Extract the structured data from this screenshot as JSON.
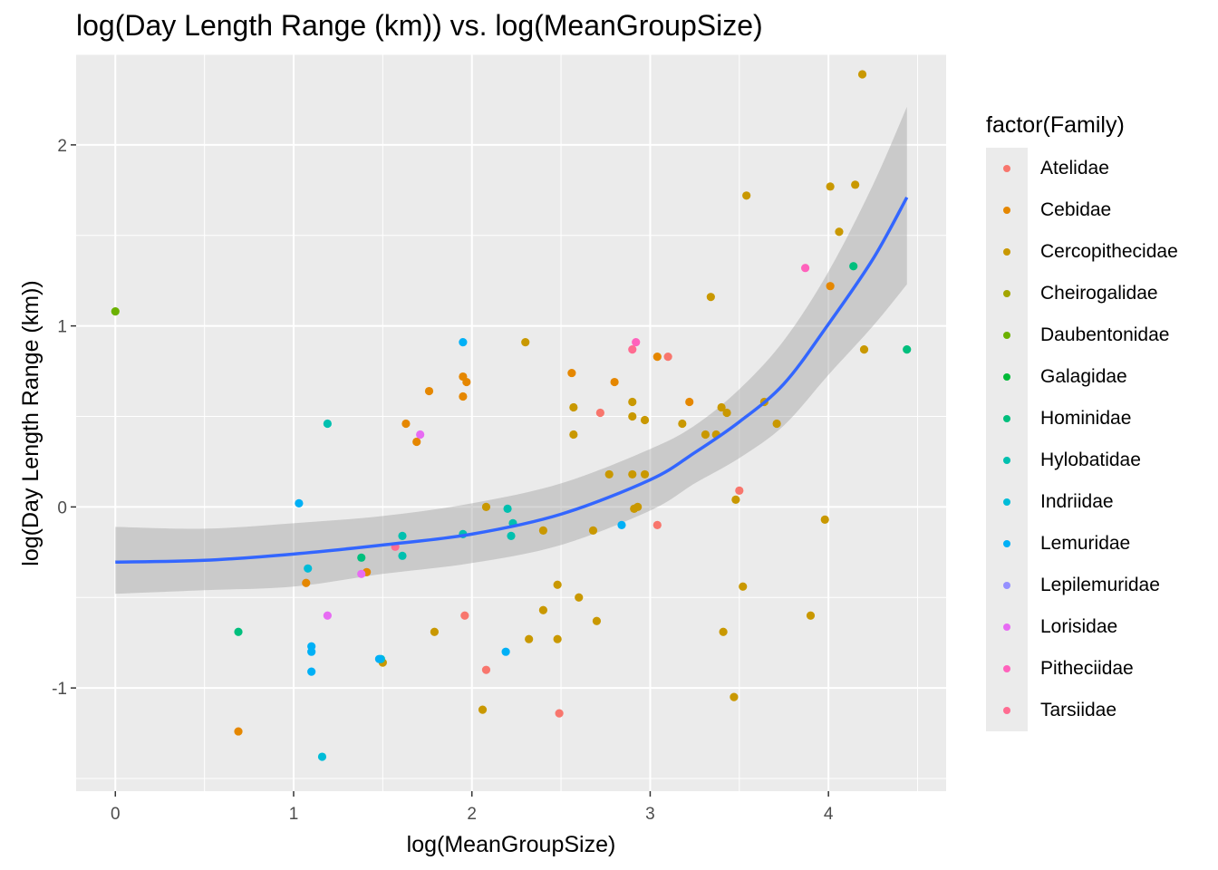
{
  "chart_data": {
    "type": "scatter",
    "title": "log(Day Length Range (km)) vs. log(MeanGroupSize)",
    "xlabel": "log(MeanGroupSize)",
    "ylabel": "log(Day Length Range (km))",
    "xlim": [
      -0.22,
      4.66
    ],
    "ylim": [
      -1.57,
      2.5
    ],
    "x_ticks": [
      0,
      1,
      2,
      3,
      4
    ],
    "y_ticks": [
      -1,
      0,
      1,
      2
    ],
    "grid": true,
    "legend_title": "factor(Family)",
    "legend_position": "right",
    "series": [
      {
        "name": "Atelidae",
        "color": "#F8766D",
        "points": [
          [
            2.49,
            -1.14
          ],
          [
            1.96,
            -0.6
          ],
          [
            2.72,
            0.52
          ],
          [
            3.04,
            -0.1
          ],
          [
            3.1,
            0.83
          ],
          [
            3.5,
            0.09
          ],
          [
            2.08,
            -0.9
          ]
        ]
      },
      {
        "name": "Cebidae",
        "color": "#E58700",
        "points": [
          [
            0.69,
            -1.24
          ],
          [
            1.07,
            -0.42
          ],
          [
            1.41,
            -0.36
          ],
          [
            1.63,
            0.46
          ],
          [
            1.69,
            0.36
          ],
          [
            1.76,
            0.64
          ],
          [
            1.95,
            0.72
          ],
          [
            1.95,
            0.61
          ],
          [
            1.97,
            0.69
          ],
          [
            2.56,
            0.74
          ],
          [
            2.8,
            0.69
          ],
          [
            3.04,
            0.83
          ],
          [
            3.22,
            0.58
          ],
          [
            4.01,
            1.22
          ]
        ]
      },
      {
        "name": "Cercopithecidae",
        "color": "#C99800",
        "points": [
          [
            1.5,
            -0.86
          ],
          [
            1.79,
            -0.69
          ],
          [
            2.06,
            -1.12
          ],
          [
            2.08,
            0.0
          ],
          [
            2.3,
            0.91
          ],
          [
            2.32,
            -0.73
          ],
          [
            2.4,
            -0.57
          ],
          [
            2.4,
            -0.13
          ],
          [
            2.48,
            -0.43
          ],
          [
            2.48,
            -0.73
          ],
          [
            2.57,
            0.4
          ],
          [
            2.57,
            0.55
          ],
          [
            2.6,
            -0.5
          ],
          [
            2.68,
            -0.13
          ],
          [
            2.7,
            -0.63
          ],
          [
            2.77,
            0.18
          ],
          [
            2.9,
            0.5
          ],
          [
            2.9,
            0.58
          ],
          [
            2.9,
            0.18
          ],
          [
            2.91,
            -0.01
          ],
          [
            2.93,
            0.0
          ],
          [
            2.97,
            0.48
          ],
          [
            2.97,
            0.18
          ],
          [
            3.18,
            0.46
          ],
          [
            3.31,
            0.4
          ],
          [
            3.34,
            1.16
          ],
          [
            3.37,
            0.4
          ],
          [
            3.4,
            0.55
          ],
          [
            3.41,
            -0.69
          ],
          [
            3.43,
            0.52
          ],
          [
            3.47,
            -1.05
          ],
          [
            3.48,
            0.04
          ],
          [
            3.52,
            -0.44
          ],
          [
            3.54,
            1.72
          ],
          [
            3.64,
            0.58
          ],
          [
            3.71,
            0.46
          ],
          [
            3.9,
            -0.6
          ],
          [
            3.98,
            -0.07
          ],
          [
            4.01,
            1.77
          ],
          [
            4.06,
            1.52
          ],
          [
            4.15,
            1.78
          ],
          [
            4.19,
            2.39
          ],
          [
            4.2,
            0.87
          ]
        ]
      },
      {
        "name": "Cheirogalidae",
        "color": "#A3A500",
        "points": []
      },
      {
        "name": "Daubentonidae",
        "color": "#6BB100",
        "points": [
          [
            0.0,
            1.08
          ]
        ]
      },
      {
        "name": "Galagidae",
        "color": "#00BA38",
        "points": []
      },
      {
        "name": "Hominidae",
        "color": "#00BF7D",
        "points": [
          [
            0.69,
            -0.69
          ],
          [
            1.38,
            -0.28
          ],
          [
            4.14,
            1.33
          ],
          [
            4.44,
            0.87
          ]
        ]
      },
      {
        "name": "Hylobatidae",
        "color": "#00C0AF",
        "points": [
          [
            1.19,
            0.46
          ],
          [
            1.61,
            -0.16
          ],
          [
            1.95,
            -0.15
          ],
          [
            2.2,
            -0.01
          ],
          [
            2.22,
            -0.16
          ],
          [
            2.23,
            -0.09
          ],
          [
            1.61,
            -0.27
          ]
        ]
      },
      {
        "name": "Indriidae",
        "color": "#00BCD8",
        "points": [
          [
            1.16,
            -1.38
          ],
          [
            1.08,
            -0.34
          ],
          [
            1.49,
            -0.84
          ]
        ]
      },
      {
        "name": "Lemuridae",
        "color": "#00B0F6",
        "points": [
          [
            1.03,
            0.02
          ],
          [
            1.1,
            -0.77
          ],
          [
            1.1,
            -0.8
          ],
          [
            1.1,
            -0.91
          ],
          [
            1.48,
            -0.84
          ],
          [
            1.95,
            0.91
          ],
          [
            2.19,
            -0.8
          ],
          [
            2.84,
            -0.1
          ]
        ]
      },
      {
        "name": "Lepilemuridae",
        "color": "#9590FF",
        "points": []
      },
      {
        "name": "Lorisidae",
        "color": "#E76BF3",
        "points": [
          [
            1.19,
            -0.6
          ],
          [
            1.38,
            -0.37
          ],
          [
            1.71,
            0.4
          ]
        ]
      },
      {
        "name": "Pitheciidae",
        "color": "#FF62BC",
        "points": [
          [
            2.92,
            0.91
          ],
          [
            3.87,
            1.32
          ]
        ]
      },
      {
        "name": "Tarsiidae",
        "color": "#FF6C91",
        "points": [
          [
            1.57,
            -0.22
          ],
          [
            2.9,
            0.87
          ]
        ]
      }
    ],
    "smooth": {
      "color": "#3366FF",
      "ribbon_color": "#999999",
      "points": [
        [
          0.0,
          -0.305
        ],
        [
          0.5,
          -0.295
        ],
        [
          1.0,
          -0.26
        ],
        [
          1.5,
          -0.21
        ],
        [
          2.0,
          -0.15
        ],
        [
          2.5,
          -0.04
        ],
        [
          3.0,
          0.15
        ],
        [
          3.25,
          0.3
        ],
        [
          3.5,
          0.47
        ],
        [
          3.75,
          0.68
        ],
        [
          4.0,
          1.01
        ],
        [
          4.25,
          1.37
        ],
        [
          4.44,
          1.71
        ]
      ],
      "lower": [
        [
          0.0,
          -0.48
        ],
        [
          0.5,
          -0.46
        ],
        [
          1.0,
          -0.44
        ],
        [
          1.5,
          -0.37
        ],
        [
          2.0,
          -0.31
        ],
        [
          2.5,
          -0.21
        ],
        [
          3.0,
          -0.02
        ],
        [
          3.25,
          0.13
        ],
        [
          3.5,
          0.27
        ],
        [
          3.75,
          0.45
        ],
        [
          4.0,
          0.73
        ],
        [
          4.25,
          1.0
        ],
        [
          4.44,
          1.23
        ]
      ],
      "upper": [
        [
          0.0,
          -0.11
        ],
        [
          0.5,
          -0.12
        ],
        [
          1.0,
          -0.09
        ],
        [
          1.5,
          -0.05
        ],
        [
          2.0,
          0.02
        ],
        [
          2.5,
          0.13
        ],
        [
          3.0,
          0.32
        ],
        [
          3.25,
          0.45
        ],
        [
          3.5,
          0.65
        ],
        [
          3.75,
          0.92
        ],
        [
          4.0,
          1.3
        ],
        [
          4.25,
          1.78
        ],
        [
          4.44,
          2.21
        ]
      ]
    }
  }
}
